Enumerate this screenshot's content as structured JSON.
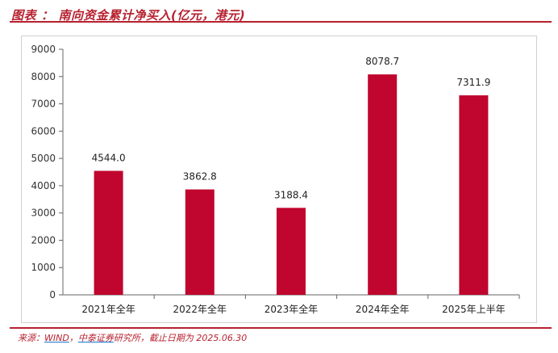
{
  "header": {
    "label": "图表",
    "separator": "：",
    "title": "南向资金累计净买入(亿元，港元)"
  },
  "chart_data": {
    "type": "bar",
    "categories": [
      "2021年全年",
      "2022年全年",
      "2023年全年",
      "2024年全年",
      "2025年上半年"
    ],
    "values": [
      4544.0,
      3862.8,
      3188.4,
      8078.7,
      7311.9
    ],
    "value_labels": [
      "4544.0",
      "3862.8",
      "3188.4",
      "8078.7",
      "7311.9"
    ],
    "ylim": [
      0,
      9000
    ],
    "yticks": [
      "0",
      "1000",
      "2000",
      "3000",
      "4000",
      "5000",
      "6000",
      "7000",
      "8000",
      "9000"
    ],
    "ytick_values": [
      0,
      1000,
      2000,
      3000,
      4000,
      5000,
      6000,
      7000,
      8000,
      9000
    ],
    "bar_color": "#c0062e",
    "grid": false,
    "title": "",
    "xlabel": "",
    "ylabel": ""
  },
  "footer": {
    "prefix": "来源：",
    "source1": "WIND",
    "comma": "，",
    "source2": "中泰证券",
    "rest": "研究所，截止日期为 2025.06.30"
  },
  "colors": {
    "accent": "#b7212f",
    "bar": "#c0062e"
  }
}
